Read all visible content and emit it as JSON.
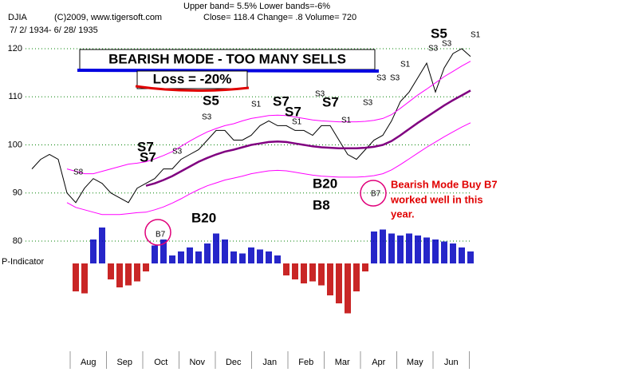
{
  "chart_data": {
    "type": "line",
    "title": "DJIA",
    "header": [
      "Upper band= 5.5%  Lower bands=-6%",
      "(C)2009, www.tigersoft.com",
      "Close=   118.4   Change= .8  Volume= 720",
      "7/ 2/ 1934- 6/ 28/ 1935"
    ],
    "annotations": [
      "BEARISH MODE - TOO MANY SELLS",
      "Loss = -20%",
      "Bearish Mode Buy B7",
      "worked well in this",
      "year.",
      "P-Indicator"
    ],
    "signals": [
      "S8",
      "S7",
      "S7",
      "S3",
      "S5",
      "S3",
      "S1",
      "S7",
      "S7",
      "S1",
      "S3",
      "S7",
      "S1",
      "S3",
      "B20",
      "B8",
      "B20",
      "B7",
      "B7",
      "S5",
      "S3",
      "S3",
      "S1",
      "S1",
      "S3",
      "S3"
    ],
    "months": [
      "Aug",
      "Sep",
      "Oct",
      "Nov",
      "Dec",
      "Jan",
      "Feb",
      "Mar",
      "Apr",
      "May",
      "Jun"
    ],
    "ylim": [
      78,
      122
    ],
    "yticks": [
      80,
      90,
      100,
      110,
      120
    ],
    "grid": true,
    "series": [
      {
        "name": "Close",
        "color": "#000000",
        "values": [
          95,
          97,
          98,
          97,
          90,
          88,
          91,
          93,
          92,
          90,
          89,
          88,
          91,
          92,
          93,
          95,
          95,
          97,
          98,
          99,
          101,
          103,
          103,
          101,
          101,
          102,
          104,
          105,
          104,
          104,
          103,
          103,
          102,
          104,
          104,
          101,
          98,
          97,
          99,
          101,
          102,
          105,
          109,
          111,
          114,
          117,
          111,
          116,
          119,
          120,
          118.4
        ]
      },
      {
        "name": "Moving average",
        "color": "#800080",
        "values": [
          null,
          null,
          null,
          null,
          null,
          null,
          null,
          null,
          null,
          null,
          null,
          null,
          null,
          91.5,
          92,
          92.7,
          93.5,
          94.5,
          95.5,
          96.5,
          97.3,
          98,
          98.6,
          99,
          99.5,
          100,
          100.3,
          100.6,
          100.7,
          100.6,
          100.3,
          100,
          99.7,
          99.5,
          99.4,
          99.3,
          99.3,
          99.3,
          99.4,
          99.6,
          100,
          100.8,
          102,
          103.3,
          104.6,
          105.8,
          107,
          108.2,
          109.3,
          110.3,
          111.3
        ]
      },
      {
        "name": "Upper band",
        "color": "#ff00ff",
        "values": [
          null,
          null,
          null,
          null,
          95,
          94.5,
          94,
          94,
          94.5,
          95,
          95.5,
          96,
          96.2,
          96.5,
          97.1,
          97.8,
          98.6,
          99.7,
          100.8,
          101.8,
          102.7,
          103.4,
          104,
          104.4,
          105,
          105.5,
          105.8,
          106.1,
          106.2,
          106.1,
          105.8,
          105.5,
          105.2,
          105,
          104.9,
          104.8,
          104.8,
          104.8,
          104.9,
          105.1,
          105.5,
          106.3,
          107.6,
          109,
          110.4,
          111.6,
          112.9,
          114.2,
          115.3,
          116.4,
          117.4
        ]
      },
      {
        "name": "Lower band",
        "color": "#ff00ff",
        "values": [
          null,
          null,
          null,
          null,
          88,
          87,
          86.5,
          86,
          85.5,
          85.5,
          85.5,
          85.7,
          85.9,
          86,
          86.5,
          87.1,
          87.9,
          88.8,
          89.8,
          90.7,
          91.5,
          92.1,
          92.7,
          93.1,
          93.5,
          94,
          94.3,
          94.6,
          94.7,
          94.6,
          94.3,
          94,
          93.7,
          93.5,
          93.4,
          93.3,
          93.3,
          93.3,
          93.4,
          93.6,
          94,
          94.8,
          95.9,
          97.1,
          98.3,
          99.5,
          100.6,
          101.7,
          102.7,
          103.7,
          104.6
        ]
      }
    ],
    "indicator": {
      "pos_color": "#0000c0",
      "neg_color": "#c00000",
      "ylim": [
        -130,
        110
      ],
      "values": [
        0,
        0,
        0,
        0,
        0,
        -70,
        -75,
        60,
        90,
        -40,
        -60,
        -55,
        -45,
        -20,
        45,
        60,
        20,
        30,
        40,
        30,
        50,
        75,
        60,
        30,
        25,
        40,
        35,
        30,
        20,
        -30,
        -40,
        -50,
        -45,
        -55,
        -80,
        -100,
        -125,
        -70,
        -20,
        80,
        85,
        75,
        70,
        75,
        70,
        65,
        60,
        55,
        50,
        40,
        30
      ]
    }
  }
}
